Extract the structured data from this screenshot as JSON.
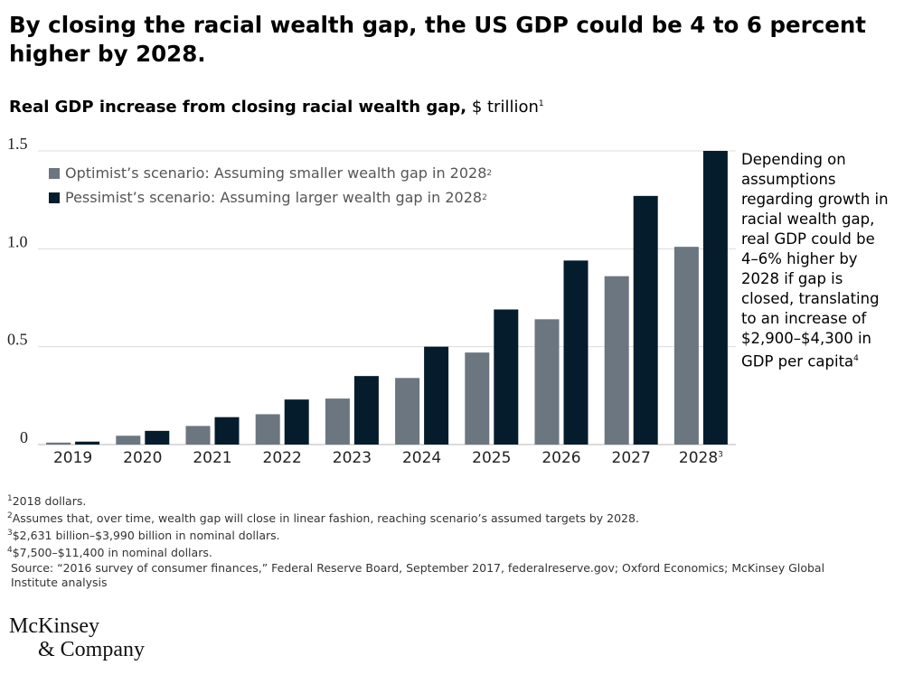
{
  "headline": "By closing the racial wealth gap, the US GDP could be 4 to 6 percent higher by 2028.",
  "subtitle": {
    "bold": "Real GDP increase from closing racial wealth gap,",
    "unit": " $ trillion",
    "sup": "1"
  },
  "colors": {
    "optimist": "#6b7680",
    "pessimist": "#051c2c",
    "grid": "#dcdcdc"
  },
  "legend": [
    {
      "label": "Optimist’s scenario: Assuming smaller wealth gap in 2028",
      "sup": "2"
    },
    {
      "label": "Pessimist’s scenario: Assuming larger wealth gap in 2028",
      "sup": "2"
    }
  ],
  "annotation": {
    "text": "Depending on assumptions regarding growth in racial wealth gap, real GDP could be 4–6% higher by 2028 if gap is closed, translating to an increase of $2,900–$4,300 in GDP per capita",
    "sup": "4"
  },
  "chart_data": {
    "type": "bar",
    "categories": [
      "2019",
      "2020",
      "2021",
      "2022",
      "2023",
      "2024",
      "2025",
      "2026",
      "2027",
      "2028"
    ],
    "category_sups": [
      "",
      "",
      "",
      "",
      "",
      "",
      "",
      "",
      "",
      "3"
    ],
    "series": [
      {
        "name": "Optimist’s scenario: Assuming smaller wealth gap in 2028",
        "values": [
          0.01,
          0.045,
          0.095,
          0.155,
          0.235,
          0.34,
          0.47,
          0.64,
          0.86,
          1.01
        ]
      },
      {
        "name": "Pessimist’s scenario: Assuming larger wealth gap in 2028",
        "values": [
          0.015,
          0.07,
          0.14,
          0.23,
          0.35,
          0.5,
          0.69,
          0.94,
          1.27,
          1.5
        ]
      }
    ],
    "yticks": [
      "0",
      "0.5",
      "1.0",
      "1.5"
    ],
    "ylim": [
      0,
      1.5
    ],
    "grid": true,
    "legend_position": "top-left"
  },
  "footnotes": [
    {
      "sup": "1",
      "text": "2018 dollars."
    },
    {
      "sup": "2",
      "text": "Assumes that, over time, wealth gap will close in linear fashion, reaching scenario’s assumed targets by 2028."
    },
    {
      "sup": "3",
      "text": "$2,631 billion–$3,990 billion in nominal dollars."
    },
    {
      "sup": "4",
      "text": "$7,500–$11,400 in nominal dollars."
    },
    {
      "sup": "",
      "text": " Source: “2016 survey of consumer finances,” Federal Reserve Board, September 2017, federalreserve.gov; Oxford Economics; McKinsey Global"
    },
    {
      "sup": "",
      "text": " Institute analysis"
    }
  ],
  "logo": {
    "line1": "McKinsey",
    "line2": "& Company"
  }
}
